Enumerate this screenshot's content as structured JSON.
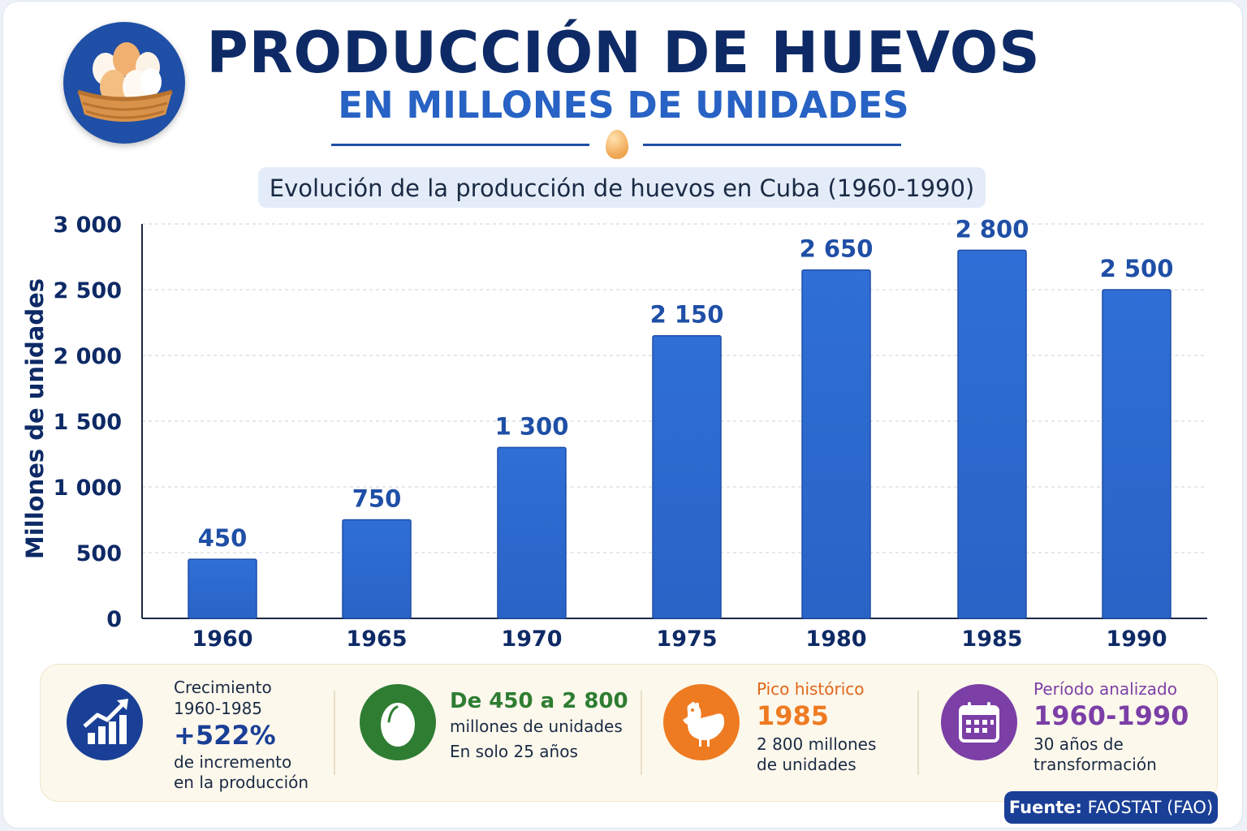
{
  "header": {
    "title": "PRODUCCIÓN DE HUEVOS",
    "subtitle": "EN MILLONES DE UNIDADES",
    "caption": "Evolución de la producción de huevos en Cuba (1960-1990)"
  },
  "chart_data": {
    "type": "bar",
    "categories": [
      "1960",
      "1965",
      "1970",
      "1975",
      "1980",
      "1985",
      "1990"
    ],
    "values": [
      450,
      750,
      1300,
      2150,
      2650,
      2800,
      2500
    ],
    "value_labels": [
      "450",
      "750",
      "1 300",
      "2 150",
      "2 650",
      "2 800",
      "2 500"
    ],
    "title": "Evolución de la producción de huevos en Cuba (1960-1990)",
    "xlabel": "",
    "ylabel": "Millones de unidades",
    "ylim": [
      0,
      3000
    ],
    "yticks": [
      0,
      500,
      1000,
      1500,
      2000,
      2500,
      3000
    ],
    "ytick_labels": [
      "0",
      "500",
      "1 000",
      "1 500",
      "2 000",
      "2 500",
      "3 000"
    ],
    "grid": true,
    "bar_color": "#2a63c6",
    "label_color": "#1f4fa6"
  },
  "stats": {
    "growth": {
      "label": "Crecimiento",
      "period": "1960-1985",
      "value": "+522%",
      "desc1": "de incremento",
      "desc2": "en la producción",
      "icon": "growth-chart-icon",
      "color": "#1a3f96"
    },
    "range": {
      "headline": "De 450 a 2 800",
      "desc1": "millones de unidades",
      "desc2": "En solo 25 años",
      "icon": "egg-icon",
      "color": "#2e7d32"
    },
    "peak": {
      "label": "Pico histórico",
      "value": "1985",
      "desc1": "2 800 millones",
      "desc2": "de unidades",
      "icon": "hen-icon",
      "color": "#ee7b22"
    },
    "period": {
      "label": "Período analizado",
      "value": "1960-1990",
      "desc1": "30 años de",
      "desc2": "transformación",
      "icon": "calendar-icon",
      "color": "#7b3fa6"
    }
  },
  "source": {
    "label": "Fuente:",
    "value": "FAOSTAT (FAO)"
  }
}
